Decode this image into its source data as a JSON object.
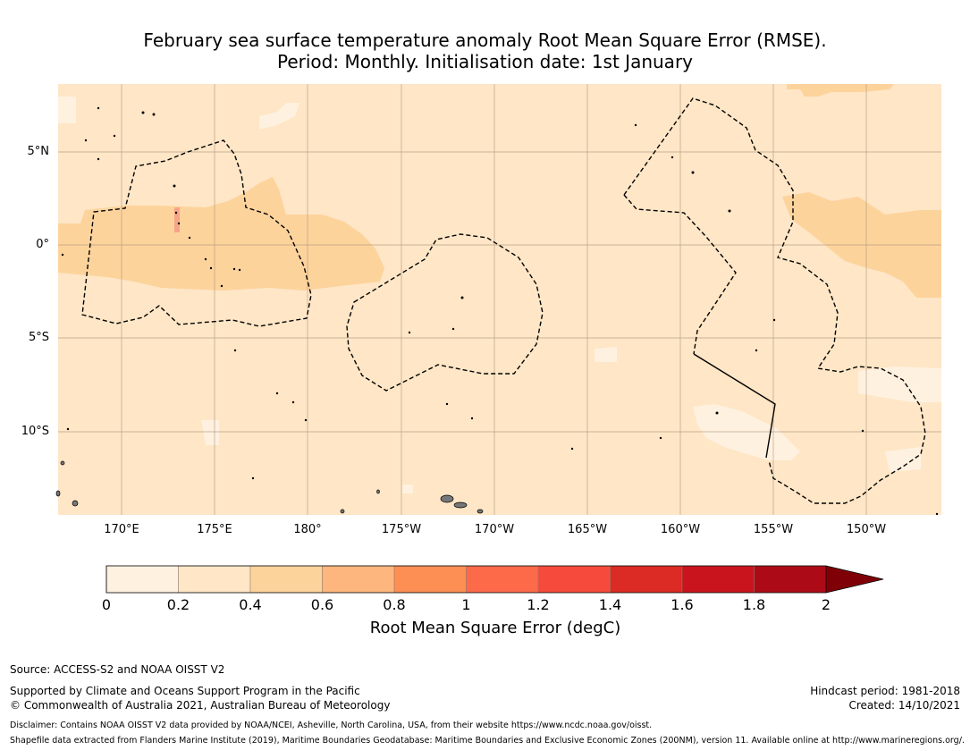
{
  "title": {
    "line1": "February sea surface temperature anomaly Root Mean Square Error (RMSE).",
    "line2": "Period: Monthly. Initialisation date: 1st January"
  },
  "map": {
    "lat_labels": [
      "5°N",
      "0°",
      "5°S",
      "10°S"
    ],
    "lon_labels": [
      "170°E",
      "175°E",
      "180°",
      "175°W",
      "170°W",
      "165°W",
      "160°W",
      "155°W",
      "150°W"
    ],
    "colors": {
      "ocean_base": "#fee6c6",
      "band_04_06": "#fdd39c",
      "band_00_02": "#fff1df",
      "land": "#777777",
      "grid": "#b09c88"
    }
  },
  "colorbar": {
    "ticks": [
      "0",
      "0.2",
      "0.4",
      "0.6",
      "0.8",
      "1",
      "1.2",
      "1.4",
      "1.6",
      "1.8",
      "2"
    ],
    "colors": [
      "#fff1df",
      "#fee6c6",
      "#fdd39c",
      "#fdb77e",
      "#fd8f55",
      "#fc6a4a",
      "#f64b3c",
      "#db2b24",
      "#c9141d",
      "#ad0a17"
    ],
    "extend_color": "#800008",
    "label": "Root Mean Square Error (degC)"
  },
  "footer": {
    "source": "Source: ACCESS-S2 and NOAA OISST V2",
    "supported": "Supported by Climate and Oceans Support Program in the Pacific",
    "copyright": "© Commonwealth of Australia 2021, Australian Bureau of Meteorology",
    "hindcast": "Hindcast period: 1981-2018",
    "created": "Created: 14/10/2021",
    "disclaimer": "Disclaimer: Contains NOAA OISST V2 data provided by NOAA/NCEI, Asheville, North Carolina, USA, from their website https://www.ncdc.noaa.gov/oisst.",
    "shapefile": "Shapefile data extracted from Flanders Marine Institute (2019), Maritime Boundaries Geodatabase: Maritime Boundaries and Exclusive Economic Zones (200NM), version 11. Available online at http://www.marineregions.org/."
  }
}
